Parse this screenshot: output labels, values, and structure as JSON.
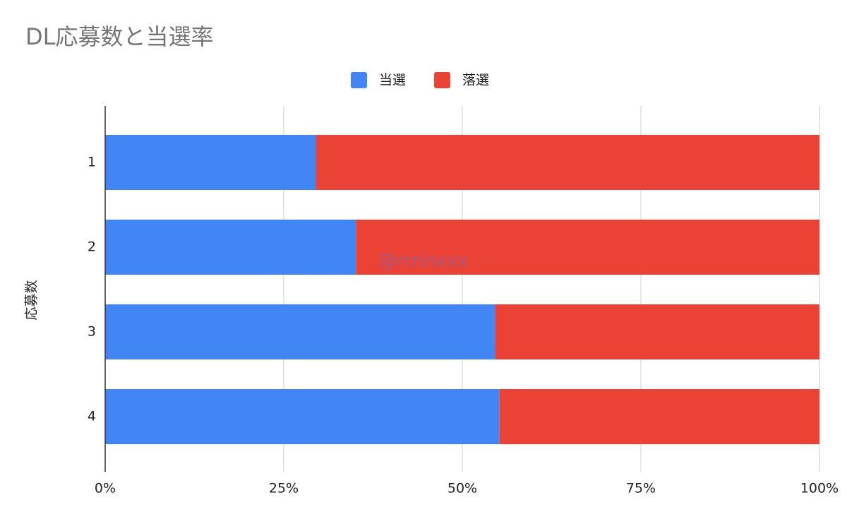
{
  "chart_data": {
    "type": "stacked-bar-horizontal",
    "title": "DL応募数と当選率",
    "y_label": "応募数",
    "watermark": "@rrrinxxx",
    "categories": [
      "1",
      "2",
      "3",
      "4"
    ],
    "series": [
      {
        "name": "当選",
        "color": "#4285f4",
        "values": [
          29.5,
          35.1,
          54.6,
          55.2
        ]
      },
      {
        "name": "落選",
        "color": "#ea4335",
        "values": [
          70.5,
          64.9,
          45.4,
          44.8
        ]
      }
    ],
    "xlim": [
      0,
      100
    ],
    "xticks": [
      {
        "value": 0,
        "label": "0%"
      },
      {
        "value": 25,
        "label": "25%"
      },
      {
        "value": 50,
        "label": "50%"
      },
      {
        "value": 75,
        "label": "75%"
      },
      {
        "value": 100,
        "label": "100%"
      }
    ],
    "grid": true,
    "legend": "top"
  }
}
